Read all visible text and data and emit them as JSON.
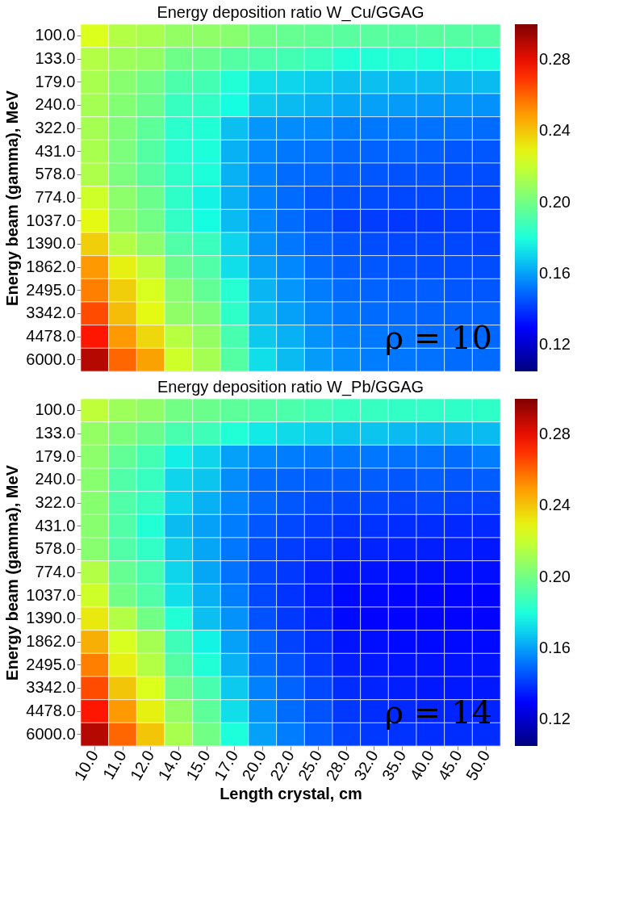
{
  "chart_data": [
    {
      "type": "heatmap",
      "title": "Energy deposition ratio W_Cu/GGAG",
      "ylabel": "Energy beam (gamma), MeV",
      "tick_labels": "y",
      "categories": [
        "10.0",
        "11.0",
        "12.0",
        "14.0",
        "15.0",
        "17.0",
        "20.0",
        "22.0",
        "25.0",
        "28.0",
        "32.0",
        "35.0",
        "40.0",
        "45.0",
        "50.0"
      ],
      "y_categories": [
        "100.0",
        "133.0",
        "179.0",
        "240.0",
        "322.0",
        "431.0",
        "578.0",
        "774.0",
        "1037.0",
        "1390.0",
        "1862.0",
        "2495.0",
        "3342.0",
        "4478.0",
        "6000.0"
      ],
      "cells": [
        [
          0.225,
          0.215,
          0.213,
          0.208,
          0.207,
          0.205,
          0.2,
          0.197,
          0.196,
          0.194,
          0.194,
          0.193,
          0.194,
          0.193,
          0.193
        ],
        [
          0.215,
          0.21,
          0.208,
          0.199,
          0.198,
          0.193,
          0.191,
          0.189,
          0.186,
          0.181,
          0.181,
          0.182,
          0.18,
          0.181,
          0.18
        ],
        [
          0.213,
          0.205,
          0.2,
          0.191,
          0.189,
          0.181,
          0.172,
          0.17,
          0.168,
          0.166,
          0.166,
          0.165,
          0.165,
          0.164,
          0.165
        ],
        [
          0.212,
          0.204,
          0.198,
          0.186,
          0.185,
          0.178,
          0.168,
          0.165,
          0.163,
          0.161,
          0.16,
          0.159,
          0.158,
          0.158,
          0.157
        ],
        [
          0.212,
          0.203,
          0.195,
          0.183,
          0.181,
          0.166,
          0.158,
          0.156,
          0.155,
          0.153,
          0.152,
          0.152,
          0.151,
          0.151,
          0.15
        ],
        [
          0.213,
          0.202,
          0.193,
          0.182,
          0.18,
          0.163,
          0.155,
          0.152,
          0.151,
          0.149,
          0.148,
          0.148,
          0.147,
          0.146,
          0.146
        ],
        [
          0.214,
          0.202,
          0.194,
          0.184,
          0.18,
          0.163,
          0.154,
          0.15,
          0.149,
          0.147,
          0.146,
          0.145,
          0.145,
          0.144,
          0.144
        ],
        [
          0.222,
          0.206,
          0.198,
          0.184,
          0.176,
          0.163,
          0.154,
          0.15,
          0.146,
          0.145,
          0.144,
          0.143,
          0.143,
          0.143,
          0.142
        ],
        [
          0.228,
          0.207,
          0.2,
          0.185,
          0.178,
          0.165,
          0.155,
          0.15,
          0.146,
          0.142,
          0.141,
          0.14,
          0.14,
          0.141,
          0.141
        ],
        [
          0.238,
          0.215,
          0.206,
          0.192,
          0.187,
          0.17,
          0.157,
          0.152,
          0.148,
          0.146,
          0.144,
          0.143,
          0.143,
          0.143,
          0.142
        ],
        [
          0.25,
          0.23,
          0.218,
          0.198,
          0.192,
          0.172,
          0.16,
          0.155,
          0.15,
          0.147,
          0.146,
          0.145,
          0.144,
          0.144,
          0.144
        ],
        [
          0.255,
          0.238,
          0.224,
          0.205,
          0.196,
          0.182,
          0.164,
          0.158,
          0.153,
          0.15,
          0.148,
          0.147,
          0.147,
          0.146,
          0.146
        ],
        [
          0.265,
          0.242,
          0.228,
          0.207,
          0.203,
          0.184,
          0.166,
          0.16,
          0.155,
          0.152,
          0.15,
          0.149,
          0.148,
          0.148,
          0.148
        ],
        [
          0.275,
          0.25,
          0.236,
          0.216,
          0.208,
          0.19,
          0.168,
          0.163,
          0.157,
          0.154,
          0.152,
          0.151,
          0.15,
          0.149,
          0.149
        ],
        [
          0.29,
          0.26,
          0.248,
          0.222,
          0.212,
          0.193,
          0.172,
          0.165,
          0.159,
          0.156,
          0.153,
          0.152,
          0.151,
          0.15,
          0.15
        ]
      ],
      "clim": [
        0.105,
        0.3
      ],
      "cticks": [
        0.12,
        0.16,
        {
          "value": 0.2,
          "label": "0.20"
        },
        0.24,
        0.28
      ],
      "annotations": [
        "ρ = 10"
      ]
    },
    {
      "type": "heatmap",
      "title": "Energy deposition ratio W_Pb/GGAG",
      "xlabel": "Length crystal, cm",
      "ylabel": "Energy beam (gamma), MeV",
      "categories": [
        "10.0",
        "11.0",
        "12.0",
        "14.0",
        "15.0",
        "17.0",
        "20.0",
        "22.0",
        "25.0",
        "28.0",
        "32.0",
        "35.0",
        "40.0",
        "45.0",
        "50.0"
      ],
      "y_categories": [
        "100.0",
        "133.0",
        "179.0",
        "240.0",
        "322.0",
        "431.0",
        "578.0",
        "774.0",
        "1037.0",
        "1390.0",
        "1862.0",
        "2495.0",
        "3342.0",
        "4478.0",
        "6000.0"
      ],
      "cells": [
        [
          0.218,
          0.21,
          0.207,
          0.2,
          0.198,
          0.195,
          0.193,
          0.191,
          0.189,
          0.186,
          0.186,
          0.185,
          0.185,
          0.184,
          0.184
        ],
        [
          0.208,
          0.203,
          0.198,
          0.19,
          0.188,
          0.181,
          0.174,
          0.171,
          0.169,
          0.167,
          0.167,
          0.165,
          0.164,
          0.164,
          0.165
        ],
        [
          0.206,
          0.196,
          0.189,
          0.175,
          0.17,
          0.16,
          0.155,
          0.153,
          0.152,
          0.152,
          0.152,
          0.151,
          0.151,
          0.15,
          0.153
        ],
        [
          0.205,
          0.192,
          0.186,
          0.17,
          0.167,
          0.156,
          0.15,
          0.148,
          0.147,
          0.147,
          0.147,
          0.146,
          0.147,
          0.146,
          0.147
        ],
        [
          0.205,
          0.192,
          0.186,
          0.17,
          0.163,
          0.155,
          0.149,
          0.146,
          0.144,
          0.143,
          0.143,
          0.142,
          0.143,
          0.142,
          0.142
        ],
        [
          0.205,
          0.192,
          0.181,
          0.165,
          0.16,
          0.153,
          0.146,
          0.143,
          0.141,
          0.139,
          0.139,
          0.138,
          0.138,
          0.137,
          0.137
        ],
        [
          0.205,
          0.192,
          0.185,
          0.168,
          0.161,
          0.152,
          0.144,
          0.141,
          0.139,
          0.136,
          0.136,
          0.135,
          0.135,
          0.135,
          0.134
        ],
        [
          0.215,
          0.197,
          0.19,
          0.17,
          0.161,
          0.151,
          0.143,
          0.14,
          0.136,
          0.133,
          0.133,
          0.132,
          0.132,
          0.132,
          0.132
        ],
        [
          0.222,
          0.2,
          0.192,
          0.172,
          0.163,
          0.153,
          0.143,
          0.139,
          0.135,
          0.131,
          0.131,
          0.13,
          0.13,
          0.13,
          0.13
        ],
        [
          0.232,
          0.215,
          0.2,
          0.181,
          0.166,
          0.157,
          0.145,
          0.14,
          0.136,
          0.131,
          0.13,
          0.13,
          0.13,
          0.13,
          0.13
        ],
        [
          0.245,
          0.224,
          0.212,
          0.188,
          0.176,
          0.16,
          0.148,
          0.142,
          0.138,
          0.133,
          0.132,
          0.131,
          0.131,
          0.131,
          0.131
        ],
        [
          0.255,
          0.23,
          0.215,
          0.193,
          0.181,
          0.163,
          0.15,
          0.145,
          0.14,
          0.135,
          0.134,
          0.133,
          0.133,
          0.133,
          0.133
        ],
        [
          0.265,
          0.24,
          0.225,
          0.2,
          0.19,
          0.168,
          0.154,
          0.148,
          0.143,
          0.138,
          0.136,
          0.135,
          0.134,
          0.134,
          0.134
        ],
        [
          0.275,
          0.25,
          0.23,
          0.208,
          0.195,
          0.172,
          0.157,
          0.15,
          0.145,
          0.14,
          0.138,
          0.137,
          0.136,
          0.136,
          0.136
        ],
        [
          0.29,
          0.26,
          0.24,
          0.213,
          0.2,
          0.18,
          0.16,
          0.153,
          0.147,
          0.142,
          0.14,
          0.139,
          0.138,
          0.138,
          0.138
        ]
      ],
      "clim": [
        0.105,
        0.3
      ],
      "cticks": [
        0.12,
        0.16,
        {
          "value": 0.2,
          "label": "0.20"
        },
        0.24,
        0.28
      ],
      "annotations": [
        "ρ = 14"
      ]
    }
  ]
}
